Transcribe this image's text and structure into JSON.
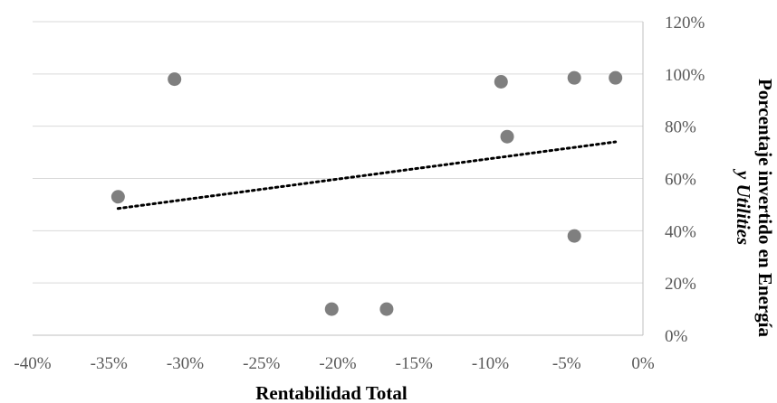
{
  "chart_data": {
    "type": "scatter",
    "xlabel": "Rentabilidad Total",
    "ylabel_line1": "Porcentaje invertido en Energía",
    "ylabel_line2": "y Utilities",
    "xlim": [
      -40,
      0
    ],
    "ylim": [
      0,
      120
    ],
    "x_ticks": [
      -40,
      -35,
      -30,
      -25,
      -20,
      -15,
      -10,
      -5,
      0
    ],
    "x_tick_labels": [
      "-40%",
      "-35%",
      "-30%",
      "-25%",
      "-20%",
      "-15%",
      "-10%",
      "-5%",
      "0%"
    ],
    "y_ticks": [
      0,
      20,
      40,
      60,
      80,
      100,
      120
    ],
    "y_tick_labels": [
      "0%",
      "20%",
      "40%",
      "60%",
      "80%",
      "100%",
      "120%"
    ],
    "grid": "horizontal",
    "y_axis_position": "right",
    "points": [
      {
        "x": -34.4,
        "y": 53
      },
      {
        "x": -30.7,
        "y": 98
      },
      {
        "x": -20.4,
        "y": 10
      },
      {
        "x": -16.8,
        "y": 10
      },
      {
        "x": -9.3,
        "y": 97
      },
      {
        "x": -8.9,
        "y": 76
      },
      {
        "x": -4.5,
        "y": 98.5
      },
      {
        "x": -4.5,
        "y": 38
      },
      {
        "x": -1.8,
        "y": 98.5
      }
    ],
    "trendline": {
      "style": "dotted",
      "x": [
        -34.4,
        -1.8
      ],
      "y": [
        48.5,
        74
      ]
    },
    "colors": {
      "marker": "#7f7f7f",
      "grid": "#d9d9d9",
      "axis": "#bfbfbf",
      "trendline": "#000000"
    }
  }
}
